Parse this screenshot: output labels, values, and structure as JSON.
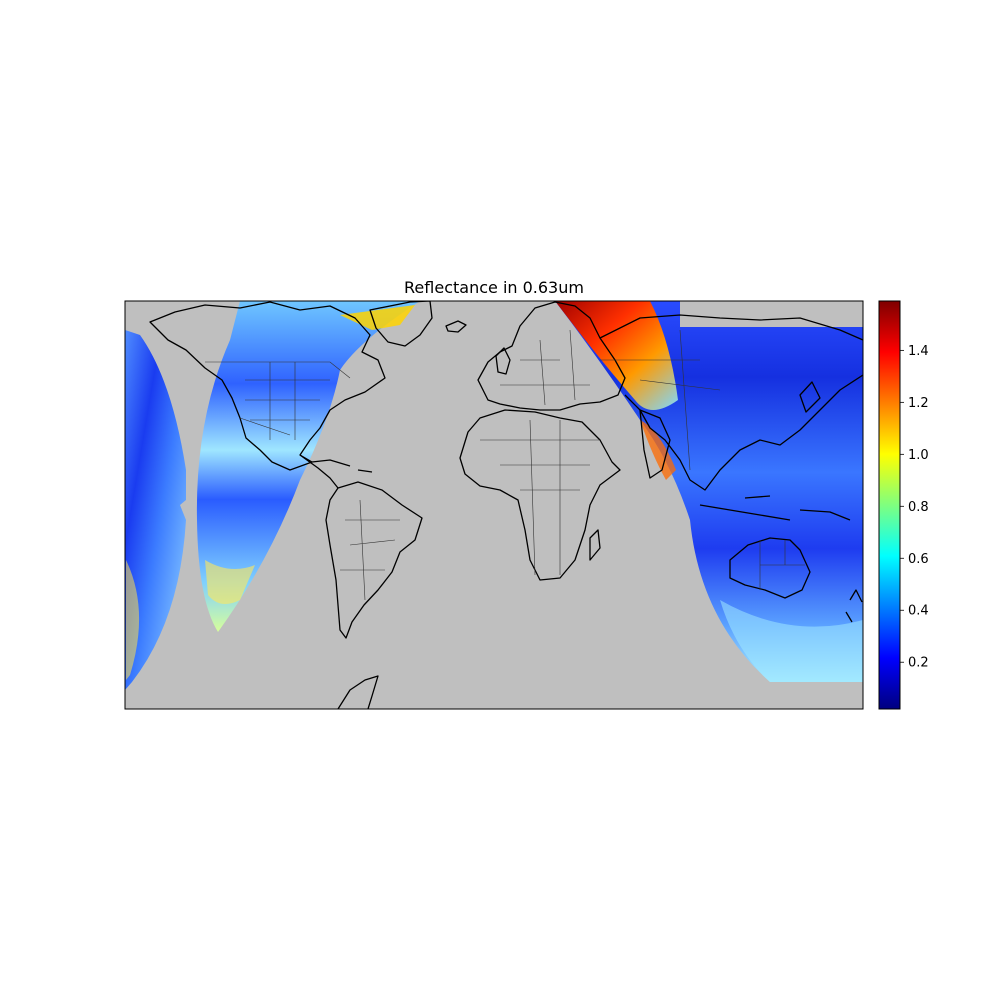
{
  "title": "Reflectance in 0.63um",
  "colors": {
    "background": "#ffffff",
    "land_ocean_no_data": "#bfbfbf",
    "coastline": "#000000",
    "borders": "#333333"
  },
  "colormap": {
    "name": "jet",
    "stops": [
      "#00007f",
      "#0000ff",
      "#007fff",
      "#00ffff",
      "#7fff7f",
      "#ffff00",
      "#ff7f00",
      "#ff0000",
      "#7f0000"
    ]
  },
  "colorbar": {
    "min": 0.02,
    "max": 1.59,
    "ticks": [
      "0.2",
      "0.4",
      "0.6",
      "0.8",
      "1.0",
      "1.2",
      "1.4"
    ],
    "tick_values": [
      0.2,
      0.4,
      0.6,
      0.8,
      1.0,
      1.2,
      1.4
    ]
  }
}
